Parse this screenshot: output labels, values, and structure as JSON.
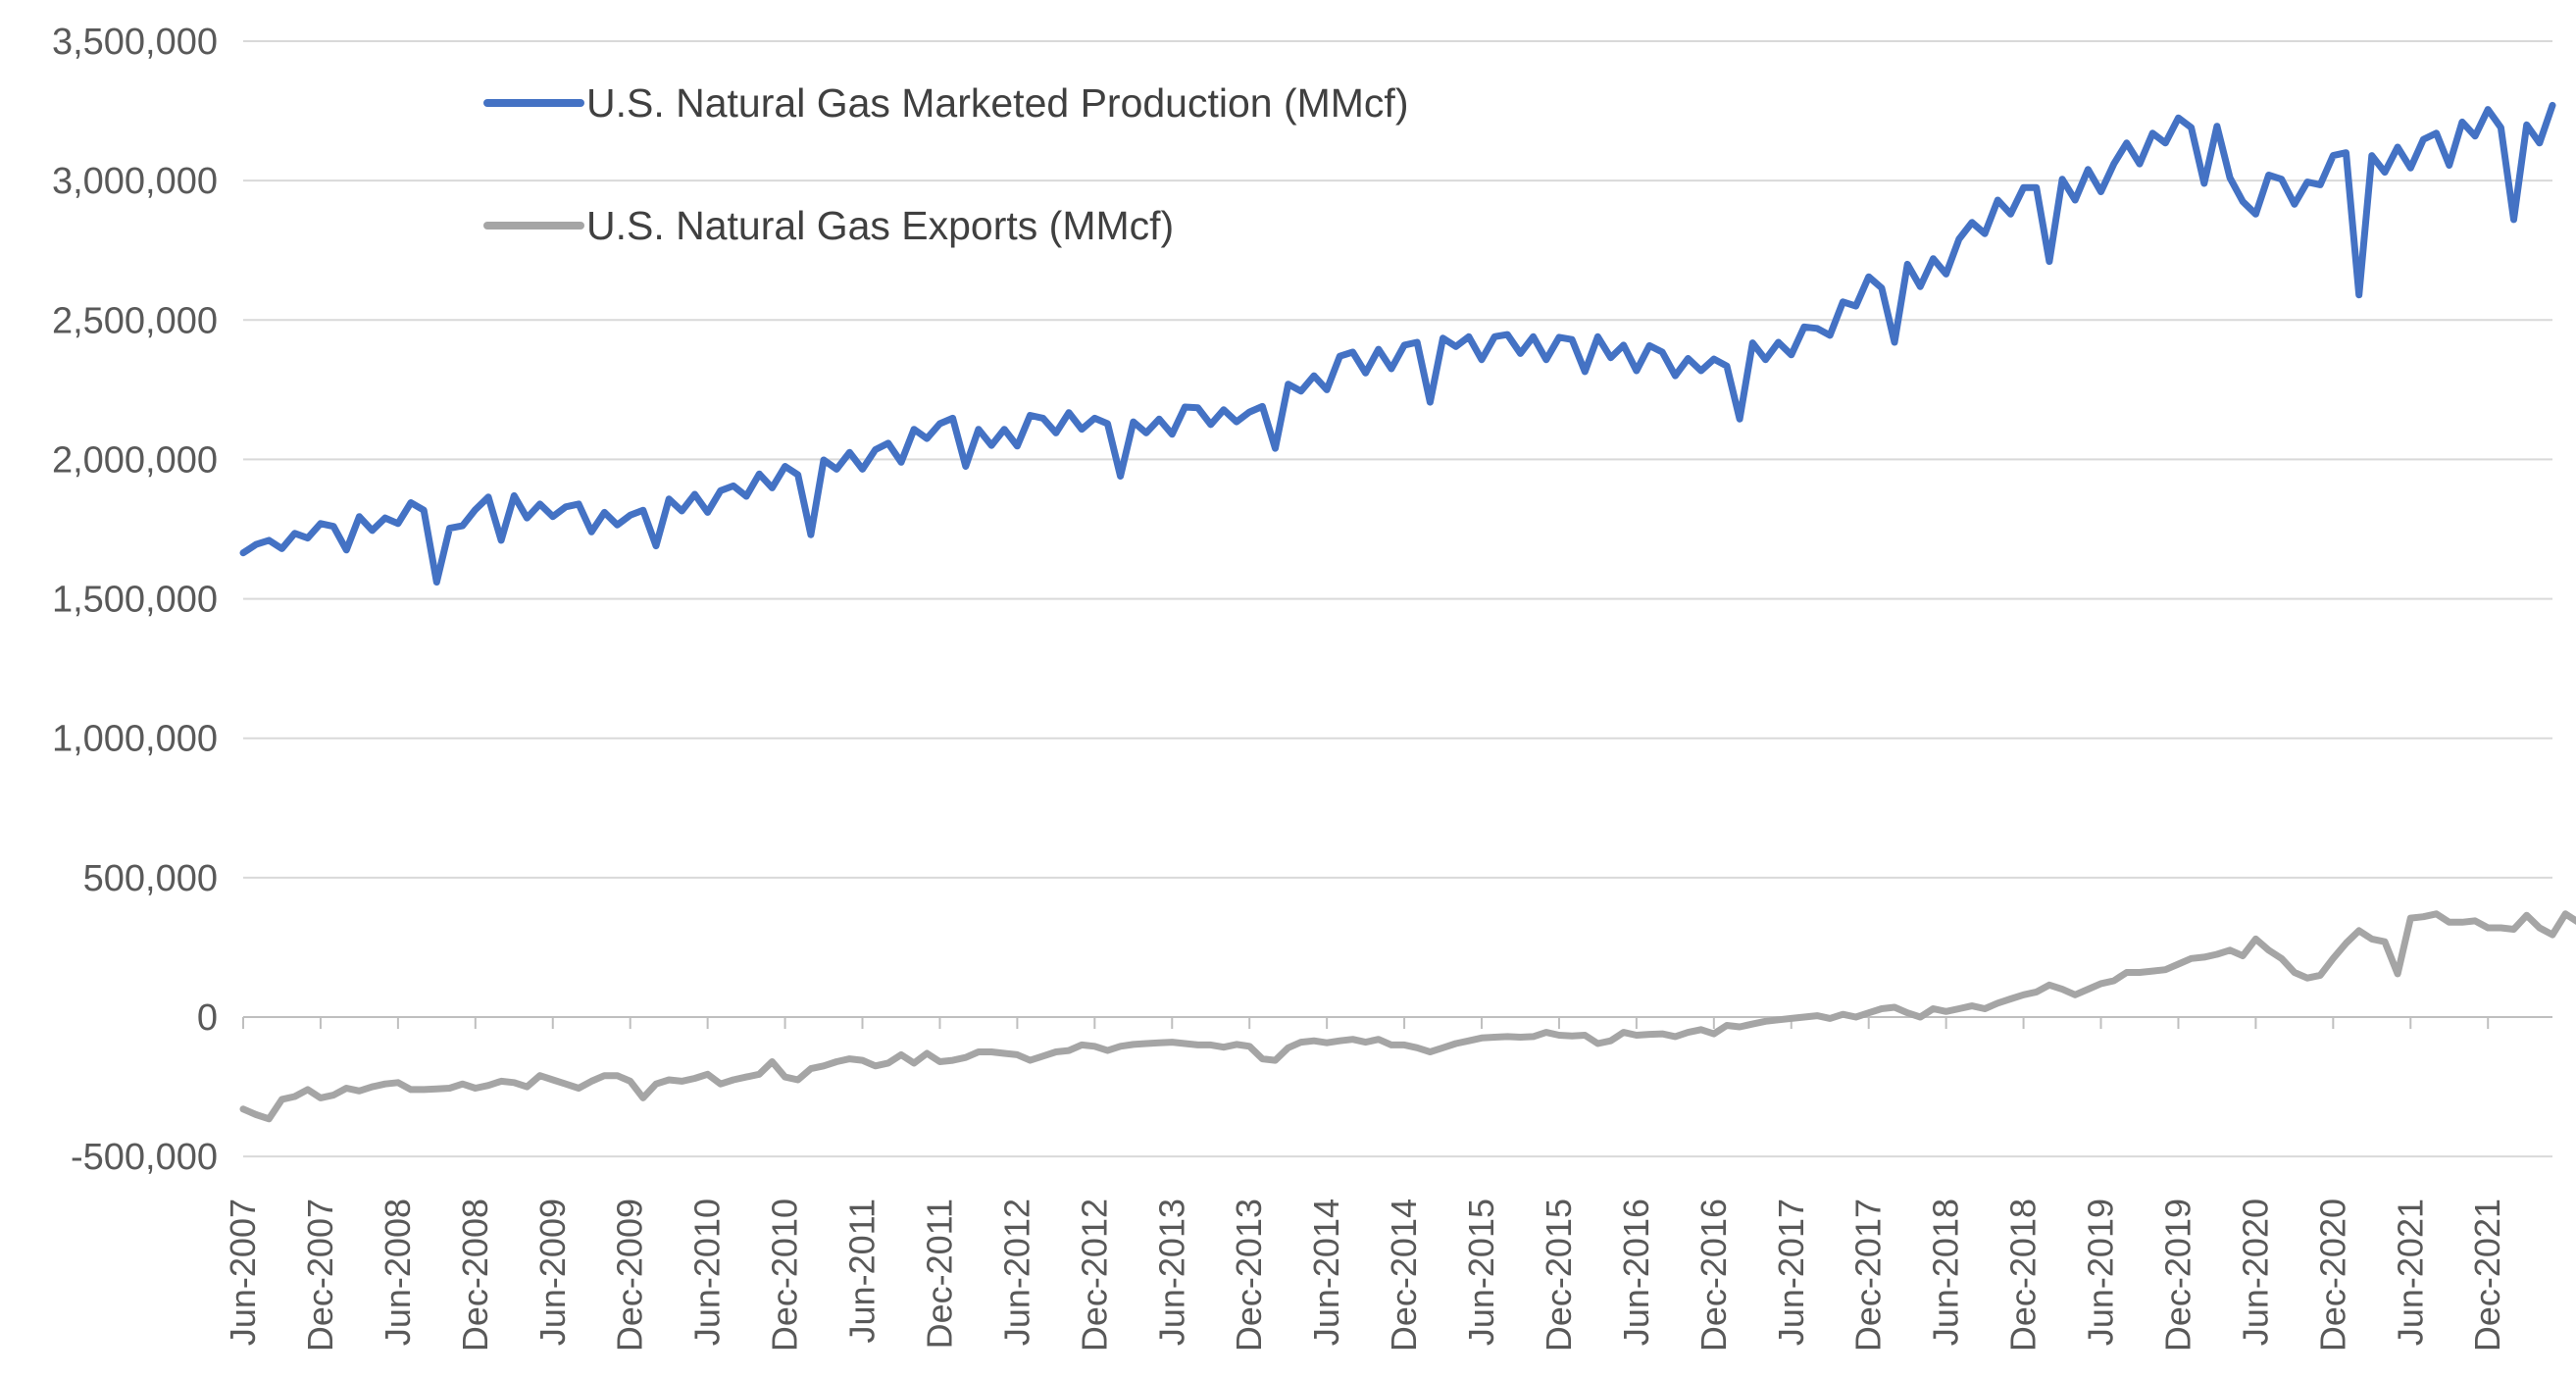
{
  "chart_data": {
    "type": "line",
    "title": "",
    "xlabel": "",
    "ylabel": "",
    "ylim": [
      -500000,
      3500000
    ],
    "y_ticks": [
      {
        "value": 3500000,
        "label": "3,500,000"
      },
      {
        "value": 3000000,
        "label": "3,000,000"
      },
      {
        "value": 2500000,
        "label": "2,500,000"
      },
      {
        "value": 2000000,
        "label": "2,000,000"
      },
      {
        "value": 1500000,
        "label": "1,500,000"
      },
      {
        "value": 1000000,
        "label": "1,000,000"
      },
      {
        "value": 500000,
        "label": "500,000"
      },
      {
        "value": 0,
        "label": "0"
      },
      {
        "value": -500000,
        "label": "-500,000"
      }
    ],
    "x_start": "Jun-2007",
    "x_end": "May-2022",
    "x_tick_labels": [
      "Jun-2007",
      "Dec-2007",
      "Jun-2008",
      "Dec-2008",
      "Jun-2009",
      "Dec-2009",
      "Jun-2010",
      "Dec-2010",
      "Jun-2011",
      "Dec-2011",
      "Jun-2012",
      "Dec-2012",
      "Jun-2013",
      "Dec-2013",
      "Jun-2014",
      "Dec-2014",
      "Jun-2015",
      "Dec-2015",
      "Jun-2016",
      "Dec-2016",
      "Jun-2017",
      "Dec-2017",
      "Jun-2018",
      "Dec-2018",
      "Jun-2019",
      "Dec-2019",
      "Jun-2020",
      "Dec-2020",
      "Jun-2021",
      "Dec-2021"
    ],
    "legend_position": "top-left",
    "series": [
      {
        "name": "U.S. Natural Gas Marketed Production (MMcf)",
        "color": "#4472C4",
        "values": [
          1665000,
          1695000,
          1710000,
          1680000,
          1735000,
          1718000,
          1770000,
          1760000,
          1675000,
          1795000,
          1745000,
          1790000,
          1770000,
          1845000,
          1818000,
          1560000,
          1753000,
          1762000,
          1820000,
          1865000,
          1710000,
          1870000,
          1790000,
          1840000,
          1795000,
          1830000,
          1840000,
          1740000,
          1810000,
          1765000,
          1800000,
          1818000,
          1690000,
          1858000,
          1815000,
          1875000,
          1810000,
          1888000,
          1905000,
          1868000,
          1948000,
          1898000,
          1975000,
          1945000,
          1730000,
          1998000,
          1965000,
          2025000,
          1965000,
          2035000,
          2058000,
          1990000,
          2108000,
          2075000,
          2128000,
          2148000,
          1975000,
          2108000,
          2050000,
          2108000,
          2048000,
          2158000,
          2148000,
          2095000,
          2168000,
          2108000,
          2148000,
          2128000,
          1940000,
          2135000,
          2095000,
          2145000,
          2090000,
          2188000,
          2185000,
          2125000,
          2178000,
          2135000,
          2170000,
          2190000,
          2040000,
          2270000,
          2245000,
          2300000,
          2250000,
          2370000,
          2385000,
          2310000,
          2395000,
          2325000,
          2410000,
          2420000,
          2205000,
          2435000,
          2405000,
          2440000,
          2358000,
          2440000,
          2448000,
          2380000,
          2440000,
          2358000,
          2438000,
          2430000,
          2315000,
          2440000,
          2365000,
          2410000,
          2318000,
          2408000,
          2385000,
          2300000,
          2362000,
          2318000,
          2360000,
          2335000,
          2145000,
          2418000,
          2358000,
          2420000,
          2375000,
          2475000,
          2470000,
          2445000,
          2565000,
          2550000,
          2655000,
          2615000,
          2420000,
          2700000,
          2620000,
          2720000,
          2665000,
          2790000,
          2850000,
          2810000,
          2930000,
          2880000,
          2975000,
          2975000,
          2710000,
          3005000,
          2930000,
          3040000,
          2960000,
          3060000,
          3135000,
          3060000,
          3170000,
          3135000,
          3225000,
          3190000,
          2990000,
          3195000,
          3010000,
          2925000,
          2880000,
          3020000,
          3005000,
          2915000,
          2995000,
          2985000,
          3090000,
          3100000,
          2590000,
          3090000,
          3030000,
          3120000,
          3045000,
          3148000,
          3170000,
          3055000,
          3210000,
          3160000,
          3255000,
          3190000,
          2860000,
          3200000,
          3135000,
          3270000
        ]
      },
      {
        "name": "U.S. Natural Gas Exports (MMcf)",
        "color": "#A5A5A5",
        "values": [
          -330000,
          -350000,
          -365000,
          -295000,
          -285000,
          -260000,
          -290000,
          -280000,
          -255000,
          -265000,
          -250000,
          -240000,
          -235000,
          -260000,
          -260000,
          -258000,
          -255000,
          -240000,
          -255000,
          -245000,
          -230000,
          -235000,
          -250000,
          -210000,
          -225000,
          -240000,
          -255000,
          -230000,
          -210000,
          -210000,
          -230000,
          -290000,
          -240000,
          -225000,
          -230000,
          -220000,
          -205000,
          -240000,
          -225000,
          -215000,
          -205000,
          -160000,
          -215000,
          -225000,
          -185000,
          -175000,
          -160000,
          -150000,
          -155000,
          -175000,
          -165000,
          -135000,
          -165000,
          -130000,
          -160000,
          -155000,
          -145000,
          -125000,
          -125000,
          -130000,
          -135000,
          -155000,
          -140000,
          -125000,
          -120000,
          -100000,
          -105000,
          -120000,
          -105000,
          -98000,
          -95000,
          -92000,
          -90000,
          -95000,
          -100000,
          -100000,
          -108000,
          -98000,
          -105000,
          -150000,
          -155000,
          -110000,
          -90000,
          -85000,
          -92000,
          -85000,
          -80000,
          -90000,
          -80000,
          -100000,
          -100000,
          -110000,
          -125000,
          -110000,
          -95000,
          -85000,
          -75000,
          -72000,
          -70000,
          -72000,
          -70000,
          -55000,
          -65000,
          -68000,
          -65000,
          -95000,
          -85000,
          -55000,
          -65000,
          -62000,
          -60000,
          -70000,
          -55000,
          -45000,
          -60000,
          -30000,
          -35000,
          -25000,
          -15000,
          -10000,
          -5000,
          0,
          5000,
          -5000,
          10000,
          0,
          15000,
          30000,
          35000,
          15000,
          0,
          30000,
          20000,
          30000,
          40000,
          30000,
          50000,
          65000,
          80000,
          90000,
          115000,
          100000,
          80000,
          100000,
          120000,
          130000,
          160000,
          160000,
          165000,
          170000,
          190000,
          210000,
          215000,
          225000,
          240000,
          220000,
          280000,
          240000,
          210000,
          160000,
          140000,
          150000,
          210000,
          265000,
          310000,
          280000,
          270000,
          155000,
          355000,
          360000,
          370000,
          340000,
          340000,
          345000,
          320000,
          320000,
          315000,
          365000,
          320000,
          295000,
          370000,
          340000,
          385000
        ]
      }
    ]
  }
}
